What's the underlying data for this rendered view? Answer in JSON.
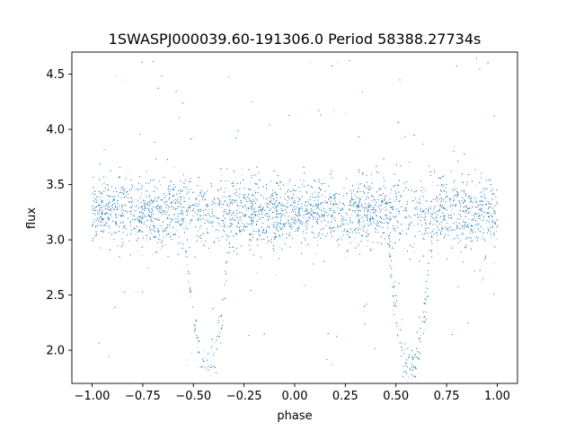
{
  "chart_data": {
    "type": "scatter",
    "title": "1SWASPJ000039.60-191306.0 Period 58388.27734s",
    "xlabel": "phase",
    "ylabel": "flux",
    "xlim": [
      -1.1,
      1.1
    ],
    "ylim": [
      1.7,
      4.7
    ],
    "xticks": [
      -1.0,
      -0.75,
      -0.5,
      -0.25,
      0.0,
      0.25,
      0.5,
      0.75,
      1.0
    ],
    "xtick_labels": [
      "−1.00",
      "−0.75",
      "−0.50",
      "−0.25",
      "0.00",
      "0.25",
      "0.50",
      "0.75",
      "1.00"
    ],
    "yticks": [
      2.0,
      2.5,
      3.0,
      3.5,
      4.0,
      4.5
    ],
    "ytick_labels": [
      "2.0",
      "2.5",
      "3.0",
      "3.5",
      "4.0",
      "4.5"
    ],
    "grid": false,
    "marker_color": "#1f77b4",
    "series": [
      {
        "baseline_flux": 3.25,
        "baseline_scatter_sigma": 0.15,
        "phase_range": [
          -1.0,
          1.0
        ],
        "eclipses": [
          {
            "center_phase": -0.43,
            "min_flux": 1.85,
            "half_width_phase": 0.12
          },
          {
            "center_phase": 0.57,
            "min_flux": 1.85,
            "half_width_phase": 0.12
          }
        ],
        "outlier_flux_range": [
          1.8,
          4.65
        ],
        "approx_point_count": 24000
      }
    ]
  }
}
